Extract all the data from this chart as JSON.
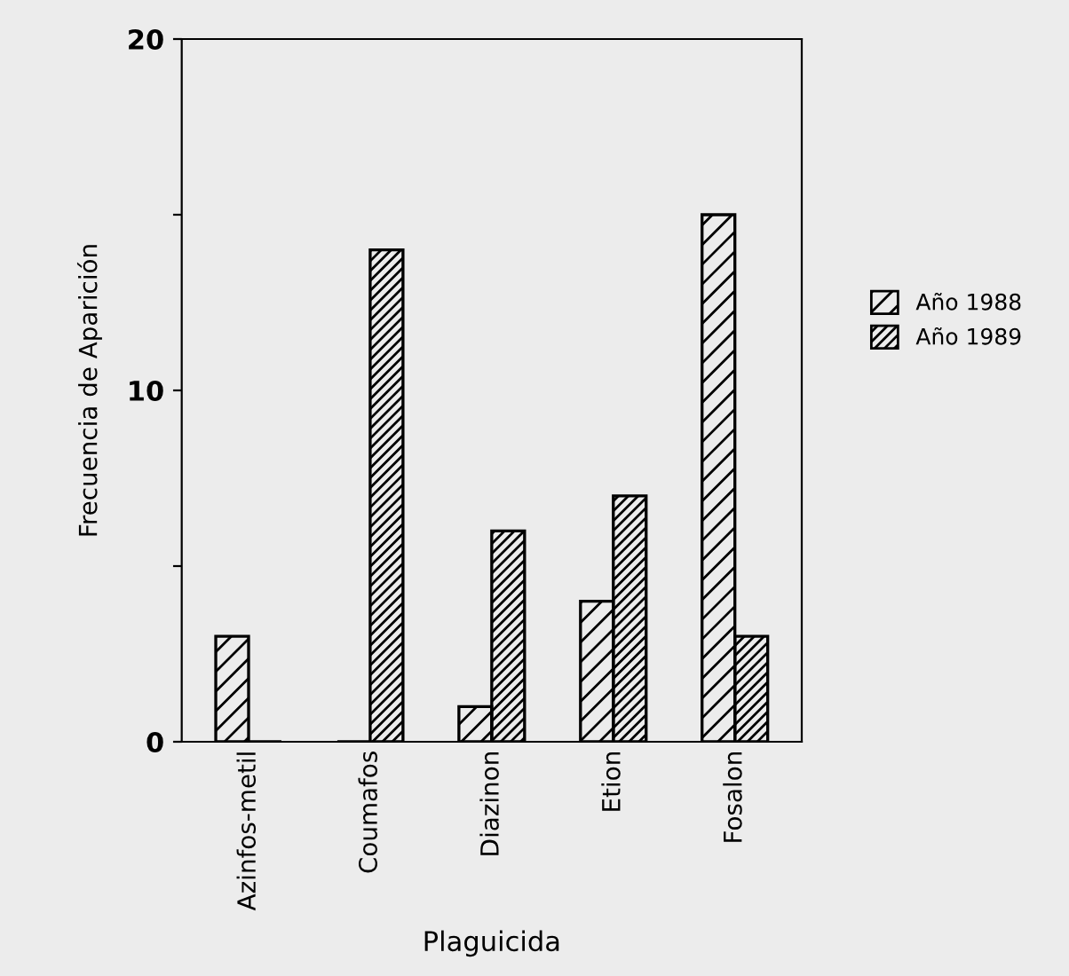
{
  "chart_data": {
    "type": "bar",
    "xlabel": "Plaguicida",
    "ylabel": "Frecuencia de Aparición",
    "categories": [
      "Azinfos-metil",
      "Coumafos",
      "Diazinon",
      "Etion",
      "Fosalon"
    ],
    "series": [
      {
        "name": "Año 1988",
        "color": "#000000",
        "values": [
          3,
          0,
          1,
          4,
          15
        ]
      },
      {
        "name": "Año 1989",
        "color": "#000000",
        "values": [
          0,
          14,
          6,
          7,
          3
        ]
      }
    ],
    "ylim": [
      0,
      20
    ],
    "yticks": [
      0,
      {
        "value": 5,
        "label": null
      },
      10,
      {
        "value": 15,
        "label": null
      },
      20
    ],
    "grid": false,
    "legend": "right"
  }
}
